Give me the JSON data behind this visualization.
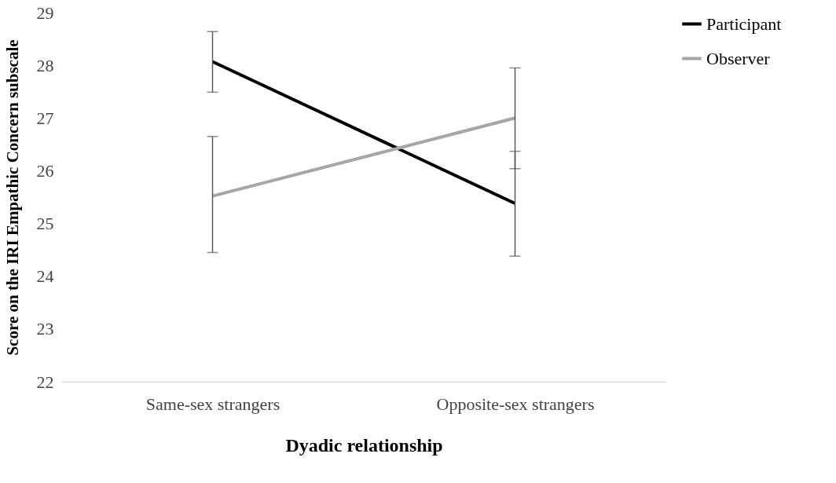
{
  "chart_data": {
    "type": "line",
    "xlabel": "Dyadic relationship",
    "ylabel": "Score on the IRI Empathic Concern subscale",
    "categories": [
      "Same-sex strangers",
      "Opposite-sex strangers"
    ],
    "series": [
      {
        "name": "Participant",
        "color": "#000000",
        "values": [
          28.07,
          25.38
        ],
        "errors": [
          [
            27.49,
            28.64
          ],
          [
            24.38,
            26.37
          ]
        ]
      },
      {
        "name": "Observer",
        "color": "#a6a6a6",
        "values": [
          25.52,
          27.0
        ],
        "errors": [
          [
            24.45,
            26.65
          ],
          [
            26.04,
            27.95
          ]
        ]
      }
    ],
    "ylim": [
      22,
      29
    ],
    "yticks": [
      22,
      23,
      24,
      25,
      26,
      27,
      28,
      29
    ],
    "grid": false,
    "legend": "top right",
    "marker": "none",
    "line_style": "solid"
  }
}
